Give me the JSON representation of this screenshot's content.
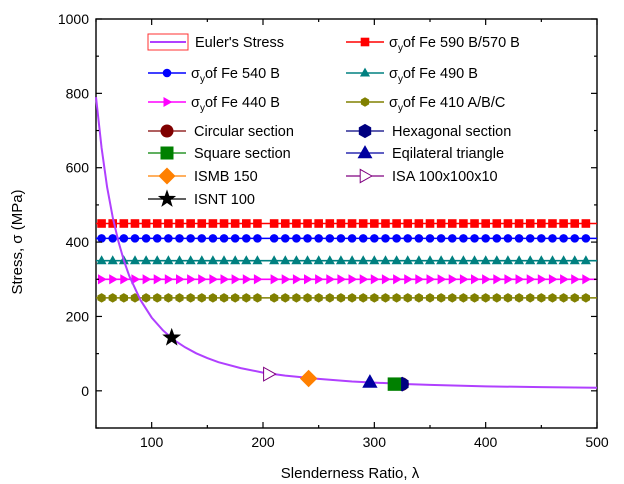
{
  "chart_data": {
    "type": "line",
    "xlabel": "Slenderness Ratio, λ",
    "ylabel": "Stress, σ (MPa)",
    "xlim": [
      50,
      500
    ],
    "ylim": [
      -100,
      1000
    ],
    "x_ticks": [
      100,
      200,
      300,
      400,
      500
    ],
    "y_ticks": [
      0,
      200,
      400,
      600,
      800,
      1000
    ],
    "grid": false,
    "legend_position": "top (inside plot area), three columns",
    "euler": {
      "name": "Euler's Stress",
      "color": "#b040ff",
      "x": [
        50,
        55,
        60,
        65,
        70,
        75,
        80,
        90,
        100,
        110,
        120,
        130,
        140,
        150,
        160,
        180,
        200,
        220,
        250,
        280,
        300,
        330,
        350,
        400,
        450,
        500
      ],
      "y": [
        790,
        653,
        548,
        467,
        403,
        351,
        308,
        244,
        197,
        163,
        137,
        117,
        101,
        88,
        77,
        61,
        49,
        41,
        32,
        25,
        22,
        18,
        16,
        12,
        10,
        8
      ]
    },
    "yield_lines": [
      {
        "name_prefix": "σ",
        "name_sub": "y",
        "name_rest": "of Fe 590 B/570 B",
        "value": 450,
        "color": "#ff0000",
        "marker": "square"
      },
      {
        "name_prefix": "σ",
        "name_sub": "y",
        "name_rest": "of Fe 540 B",
        "value": 410,
        "color": "#0000ff",
        "marker": "circle"
      },
      {
        "name_prefix": "σ",
        "name_sub": "y",
        "name_rest": "of Fe 490 B",
        "value": 350,
        "color": "#008080",
        "marker": "triangle-up"
      },
      {
        "name_prefix": "σ",
        "name_sub": "y",
        "name_rest": "of Fe 440 B",
        "value": 300,
        "color": "#ff00ff",
        "marker": "triangle-right"
      },
      {
        "name_prefix": "σ",
        "name_sub": "y",
        "name_rest": "of Fe 410 A/B/C",
        "value": 250,
        "color": "#808000",
        "marker": "hexagon"
      }
    ],
    "yield_marker_x": [
      55,
      65,
      75,
      85,
      95,
      105,
      115,
      125,
      135,
      145,
      155,
      165,
      175,
      185,
      195,
      210,
      220,
      230,
      240,
      250,
      260,
      270,
      280,
      290,
      300,
      310,
      320,
      330,
      340,
      350,
      360,
      370,
      380,
      390,
      400,
      410,
      420,
      430,
      440,
      450,
      460,
      470,
      480,
      490
    ],
    "sections": [
      {
        "name": "Circular section",
        "x": 325,
        "y": 18,
        "color": "#800000",
        "marker": "circle",
        "filled": true
      },
      {
        "name": "Hexagonal section",
        "x": 325,
        "y": 18,
        "color": "#000080",
        "marker": "hexagon",
        "filled": true
      },
      {
        "name": "Square section",
        "x": 318,
        "y": 18,
        "color": "#008000",
        "marker": "square",
        "filled": true
      },
      {
        "name": "Eqilateral triangle",
        "x": 296,
        "y": 23,
        "color": "#0000a0",
        "marker": "triangle-up",
        "filled": true
      },
      {
        "name": "ISMB 150",
        "x": 241,
        "y": 33,
        "color": "#ff8000",
        "marker": "diamond",
        "filled": true
      },
      {
        "name": "ISA 100x100x10",
        "x": 205,
        "y": 45,
        "color": "#800080",
        "marker": "triangle-right",
        "filled": false
      },
      {
        "name": "ISNT 100",
        "x": 118,
        "y": 143,
        "color": "#000000",
        "marker": "star",
        "filled": true
      }
    ]
  }
}
